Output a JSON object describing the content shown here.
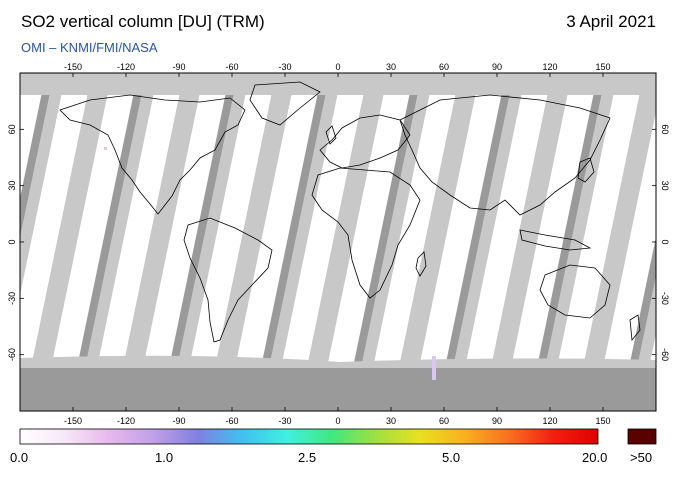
{
  "header": {
    "title": "SO2 vertical column [DU] (TRM)",
    "date": "3 April 2021",
    "credit": "OMI  –  KNMI/FMI/NASA"
  },
  "map": {
    "projection": "equirectangular",
    "lon_range": [
      -180,
      180
    ],
    "lat_range": [
      -90,
      90
    ],
    "lon_ticks": [
      "-150",
      "-120",
      "-90",
      "-60",
      "-30",
      "0",
      "30",
      "60",
      "90",
      "120",
      "150"
    ],
    "lat_ticks_left": [
      "60",
      "30",
      "0",
      "-30",
      "-60"
    ],
    "lat_ticks_right": [
      "60",
      "30",
      "0",
      "-30",
      "-60"
    ],
    "colors": {
      "no_data": "#c8c8c8",
      "land_shade": "#9a9a9a",
      "swath": "#ffffff",
      "coast": "#000000"
    }
  },
  "colorbar": {
    "labels": [
      "0.0",
      "1.0",
      "2.5",
      "5.0",
      "20.0"
    ],
    "overflow_label": ">50",
    "overflow_color": "#5a0000",
    "gradient": [
      "#ffffff",
      "#f6e8f6",
      "#e8b8ec",
      "#c0a0e8",
      "#8080e0",
      "#40c0f0",
      "#40f0e0",
      "#40e880",
      "#a0e040",
      "#e8e020",
      "#f8b020",
      "#f87020",
      "#f02010",
      "#e00000"
    ]
  }
}
